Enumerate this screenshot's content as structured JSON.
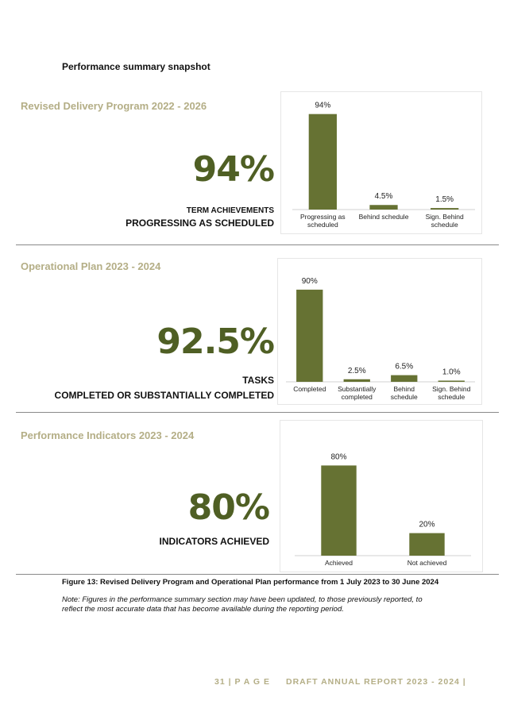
{
  "heading": "Performance summary snapshot",
  "sections": [
    {
      "title": "Revised Delivery Program 2022 - 2026",
      "big_value": "94%",
      "label_line1": "TERM ACHIEVEMENTS",
      "label_line2": "PROGRESSING AS SCHEDULED"
    },
    {
      "title": "Operational Plan 2023 - 2024",
      "big_value": "92.5%",
      "label_line1": "TASKS",
      "label_line2": "COMPLETED OR SUBSTANTIALLY COMPLETED"
    },
    {
      "title": "Performance Indicators 2023 - 2024",
      "big_value": "80%",
      "label_line1": "INDICATORS ACHIEVED",
      "label_line2": ""
    }
  ],
  "chart_data": [
    {
      "type": "bar",
      "categories": [
        [
          "Progressing as",
          "scheduled"
        ],
        [
          "Behind schedule"
        ],
        [
          "Sign. Behind",
          "schedule"
        ]
      ],
      "values": [
        94,
        4.5,
        1.5
      ],
      "data_labels": [
        "94%",
        "4.5%",
        "1.5%"
      ],
      "ylim": [
        0,
        100
      ],
      "grid": false,
      "color": "#667233"
    },
    {
      "type": "bar",
      "categories": [
        [
          "Completed"
        ],
        [
          "Substantially",
          "completed"
        ],
        [
          "Behind",
          "schedule"
        ],
        [
          "Sign. Behind",
          "schedule"
        ]
      ],
      "values": [
        90,
        2.5,
        6.5,
        1.0
      ],
      "data_labels": [
        "90%",
        "2.5%",
        "6.5%",
        "1.0%"
      ],
      "ylim": [
        0,
        100
      ],
      "grid": false,
      "color": "#667233"
    },
    {
      "type": "bar",
      "categories": [
        [
          "Achieved"
        ],
        [
          "Not achieved"
        ]
      ],
      "values": [
        80,
        20
      ],
      "data_labels": [
        "80%",
        "20%"
      ],
      "ylim": [
        0,
        100
      ],
      "grid": false,
      "color": "#667233"
    }
  ],
  "caption": "Figure 13: Revised Delivery Program and Operational Plan performance from 1 July 2023 to 30 June 2024",
  "note": "Note: Figures in the performance summary section may have been updated, to those previously reported, to reflect the most accurate data that has become available during the reporting period.",
  "footer": {
    "page": "31 | P A G E",
    "report": "DRAFT ANNUAL REPORT 2023 - 2024 |"
  }
}
